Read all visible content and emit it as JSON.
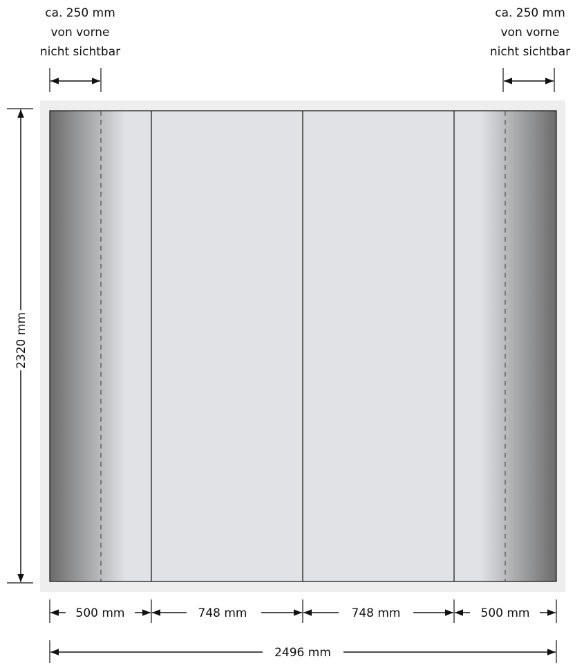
{
  "notes": {
    "left": {
      "line1": "ca. 250 mm",
      "line2": "von vorne",
      "line3": "nicht sichtbar"
    },
    "right": {
      "line1": "ca. 250 mm",
      "line2": "von vorne",
      "line3": "nicht sichtbar"
    }
  },
  "dimensions": {
    "height": "2320 mm",
    "panel_1": "500 mm",
    "panel_2": "748 mm",
    "panel_3": "748 mm",
    "panel_4": "500 mm",
    "total": "2496 mm"
  },
  "colors": {
    "frame_bg": "#eeeeee",
    "panel_fill": "#e1e2e5",
    "edge_dark": "#6b6b6b",
    "line": "#111111"
  }
}
